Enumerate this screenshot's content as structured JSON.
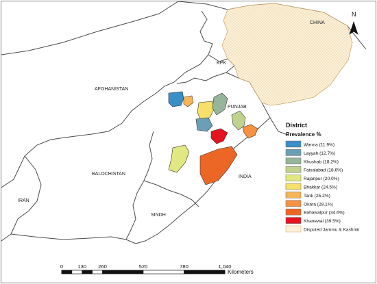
{
  "map": {
    "region_labels": {
      "china": "CHINA",
      "kpk": "KPK",
      "afghanistan": "AFGHANISTAN",
      "punjab": "PUNJAB",
      "balochistan": "BALOCHISTAN",
      "india": "INDIA",
      "iran": "IRAN",
      "sindh": "SINDH"
    },
    "north_arrow": {
      "label": "N"
    },
    "colors": {
      "boundary_stroke": "#4a4a4a",
      "land_fill": "#ffffff",
      "disputed_fill": "#fbf1d8",
      "disputed_stroke": "#cfa76a"
    }
  },
  "legend": {
    "title": "District",
    "subtitle": "Prevalence %",
    "items": [
      {
        "label": "Wanna (11.9%)",
        "color": "#3a8fc7"
      },
      {
        "label": "Layyah (12.7%)",
        "color": "#6b9fb5"
      },
      {
        "label": "Khushab (18.2%)",
        "color": "#96b59a"
      },
      {
        "label": "Faisalabad (18.6%)",
        "color": "#bfd38e"
      },
      {
        "label": "Rajanpur (20.0%)",
        "color": "#e1e781"
      },
      {
        "label": "Bhakkar (24.5%)",
        "color": "#f6df6b"
      },
      {
        "label": "Tank (25.2%)",
        "color": "#f6b558"
      },
      {
        "label": "Okara (28.1%)",
        "color": "#f59140"
      },
      {
        "label": "Bahawalpur (34.6%)",
        "color": "#ec6726"
      },
      {
        "label": "Khanewal (39.5%)",
        "color": "#e5131e"
      },
      {
        "label": "Disputed Jammu & Kashmir",
        "color": "#fbf1d8",
        "border": "#cfa76a"
      }
    ]
  },
  "scale_bar": {
    "ticks": [
      "0",
      "130",
      "260",
      "520",
      "780",
      "1,040"
    ],
    "unit": "Kilometers"
  }
}
